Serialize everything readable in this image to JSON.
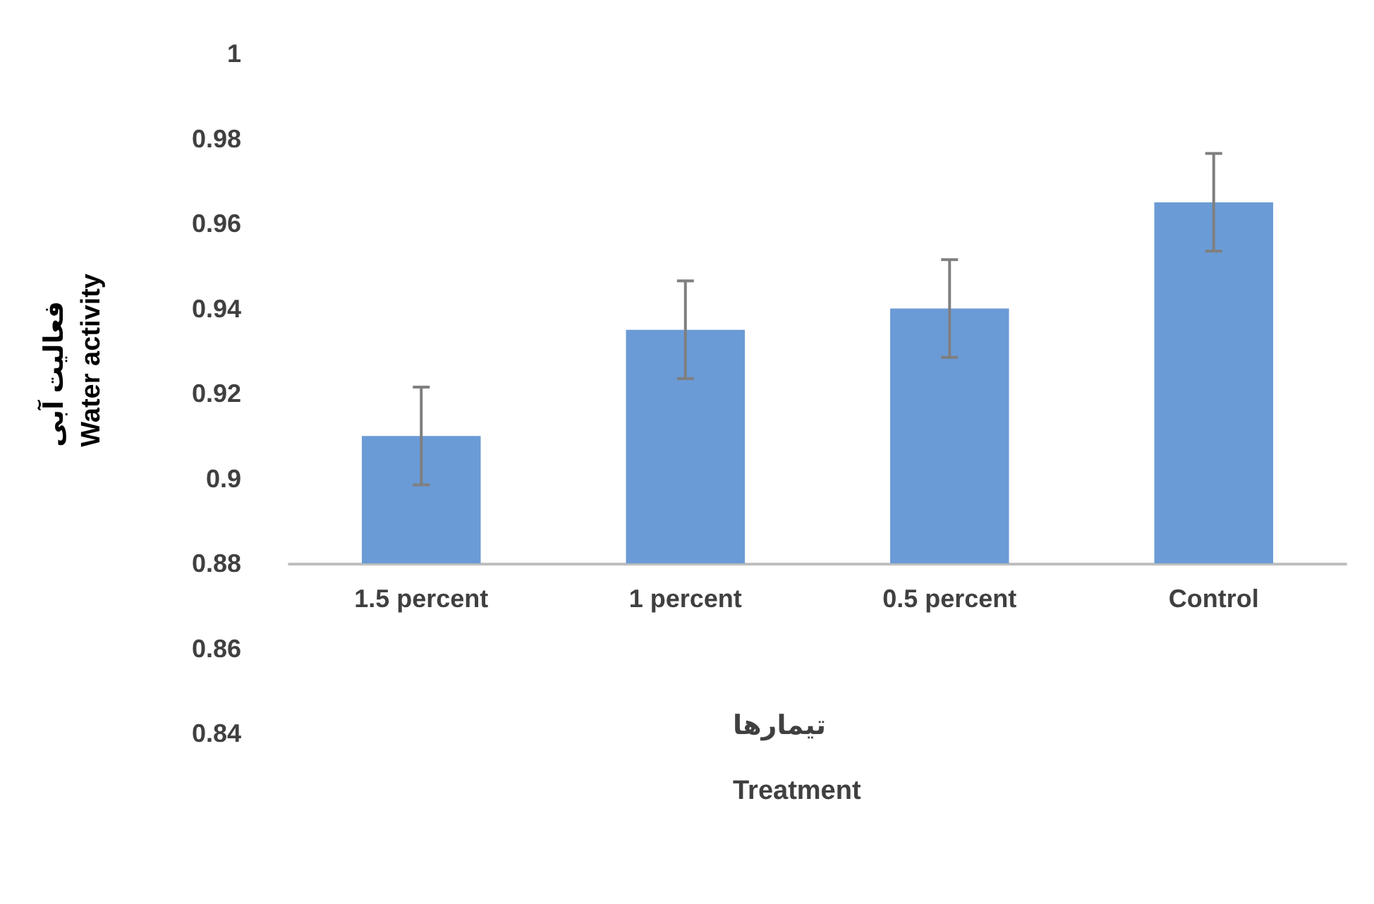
{
  "chart_data": {
    "type": "bar",
    "xlabel": "تیمارها\nTreatment",
    "ylabel": "فعالیت آبی\nWater activity",
    "categories": [
      "1.5 percent",
      "1 percent",
      "0.5 percent",
      "Control"
    ],
    "base": [
      0.88,
      0.88,
      0.88,
      0.88
    ],
    "values": [
      0.03,
      0.055,
      0.06,
      0.085
    ],
    "errors": [
      0.0115,
      0.0115,
      0.0115,
      0.0115
    ],
    "color": "#6b9bd6",
    "ylim": [
      0.84,
      1
    ],
    "yticks": [
      0.84,
      0.86,
      0.88,
      0.9,
      0.92,
      0.94,
      0.96,
      0.98,
      1
    ],
    "grid": false
  }
}
